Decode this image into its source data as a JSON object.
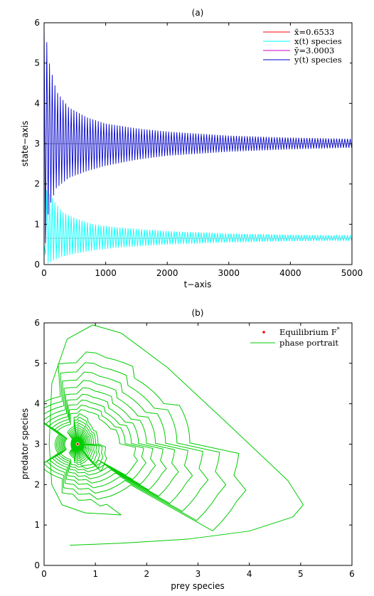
{
  "chart_data": [
    {
      "type": "line",
      "title": "(a)",
      "xlabel": "t−axis",
      "ylabel": "state−axis",
      "xlim": [
        0,
        5000
      ],
      "ylim": [
        0,
        6
      ],
      "xticks": [
        "0",
        "1000",
        "2000",
        "3000",
        "4000",
        "5000"
      ],
      "yticks": [
        "0",
        "1",
        "2",
        "3",
        "4",
        "5",
        "6"
      ],
      "legend_position": "top-right",
      "legend": [
        {
          "label": "x̄=0.6533",
          "color": "#ff0000"
        },
        {
          "label": "x(t) species",
          "color": "#00ffff"
        },
        {
          "label": "ȳ=3.0003",
          "color": "#cc00cc"
        },
        {
          "label": "y(t) species",
          "color": "#0000cc"
        }
      ],
      "series": [
        {
          "name": "x̄=0.6533",
          "kind": "constant",
          "y": 0.6533,
          "color": "#ff0000"
        },
        {
          "name": "x(t) species",
          "kind": "oscillation",
          "center": 0.6533,
          "color": "#00ffff",
          "envelope_t": [
            0,
            40,
            80,
            150,
            300,
            500,
            800,
            1200,
            2000,
            3000,
            4000,
            5000
          ],
          "envelope_upper": [
            0.5,
            1.85,
            1.78,
            1.6,
            1.3,
            1.15,
            1.0,
            0.92,
            0.83,
            0.77,
            0.74,
            0.72
          ],
          "envelope_lower": [
            0.5,
            0.02,
            0.04,
            0.1,
            0.2,
            0.27,
            0.35,
            0.42,
            0.5,
            0.55,
            0.58,
            0.6
          ]
        },
        {
          "name": "ȳ=3.0003",
          "kind": "constant",
          "y": 3.0003,
          "color": "#cc00cc"
        },
        {
          "name": "y(t) species",
          "kind": "oscillation",
          "center": 3.0003,
          "color": "#0000cc",
          "envelope_t": [
            0,
            20,
            60,
            100,
            200,
            400,
            700,
            1000,
            1500,
            2000,
            3000,
            4000,
            5000
          ],
          "envelope_upper": [
            6.0,
            6.0,
            5.2,
            4.9,
            4.3,
            3.9,
            3.65,
            3.5,
            3.38,
            3.3,
            3.2,
            3.15,
            3.12
          ],
          "envelope_lower": [
            6.0,
            0.5,
            1.2,
            1.5,
            1.9,
            2.15,
            2.32,
            2.45,
            2.6,
            2.7,
            2.8,
            2.86,
            2.9
          ]
        }
      ]
    },
    {
      "type": "line",
      "title": "(b)",
      "xlabel": "prey species",
      "ylabel": "predator species",
      "xlim": [
        0,
        6
      ],
      "ylim": [
        0,
        6
      ],
      "xticks": [
        "0",
        "1",
        "2",
        "3",
        "4",
        "5",
        "6"
      ],
      "yticks": [
        "0",
        "1",
        "2",
        "3",
        "4",
        "5",
        "6"
      ],
      "legend_position": "top-right",
      "legend": [
        {
          "label": "Equilibrium F*",
          "label_main": "Equilibrium F",
          "label_sup": "*",
          "color": "#ff0000"
        },
        {
          "label": "phase portrait",
          "color": "#00cc00"
        }
      ],
      "equilibrium": {
        "x": 0.6533,
        "y": 3.0003,
        "color": "#ff0000"
      },
      "phase_portrait": {
        "color": "#00cc00",
        "start": [
          0.5,
          0.5
        ],
        "first_loop": [
          [
            0.5,
            0.5
          ],
          [
            1.5,
            0.55
          ],
          [
            2.8,
            0.65
          ],
          [
            4.0,
            0.85
          ],
          [
            4.85,
            1.2
          ],
          [
            5.05,
            1.5
          ],
          [
            4.75,
            2.1
          ],
          [
            3.5,
            3.6
          ],
          [
            2.4,
            4.9
          ],
          [
            1.5,
            5.75
          ],
          [
            0.95,
            5.95
          ],
          [
            0.45,
            5.6
          ],
          [
            0.15,
            4.5
          ],
          [
            0.1,
            3.0
          ],
          [
            0.15,
            2.0
          ],
          [
            0.35,
            1.5
          ],
          [
            0.8,
            1.3
          ],
          [
            1.5,
            1.25
          ]
        ]
      }
    }
  ]
}
